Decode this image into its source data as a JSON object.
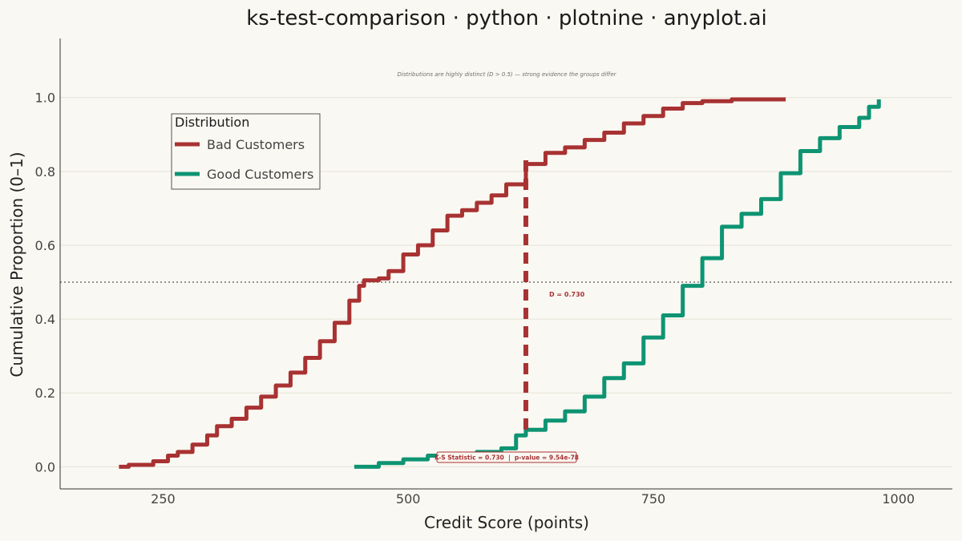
{
  "chart_data": {
    "type": "line",
    "title": "ks-test-comparison · python · plotnine · anyplot.ai",
    "xlabel": "Credit Score (points)",
    "ylabel": "Cumulative Proportion (0–1)",
    "xlim": [
      145,
      1055
    ],
    "ylim": [
      -0.06,
      1.16
    ],
    "x_ticks": [
      250,
      500,
      750,
      1000
    ],
    "y_ticks": [
      0.0,
      0.2,
      0.4,
      0.6,
      0.8,
      1.0
    ],
    "x_tick_labels": [
      "250",
      "500",
      "750",
      "1000"
    ],
    "y_tick_labels": [
      "0.0",
      "0.2",
      "0.4",
      "0.6",
      "0.8",
      "1.0"
    ],
    "grid": "horizontal",
    "legend": {
      "title": "Distribution",
      "position": "top-left"
    },
    "reference_line": {
      "y": 0.5,
      "style": "dotted"
    },
    "series": [
      {
        "name": "Bad Customers",
        "color": "#A83232",
        "x": [
          205,
          215,
          230,
          240,
          255,
          265,
          280,
          295,
          305,
          320,
          335,
          350,
          365,
          380,
          395,
          410,
          425,
          440,
          450,
          455,
          470,
          480,
          495,
          510,
          525,
          540,
          555,
          570,
          585,
          600,
          620,
          640,
          660,
          680,
          700,
          720,
          740,
          760,
          780,
          800,
          830,
          860,
          885
        ],
        "y": [
          0.0,
          0.005,
          0.005,
          0.015,
          0.03,
          0.04,
          0.06,
          0.085,
          0.11,
          0.13,
          0.16,
          0.19,
          0.22,
          0.255,
          0.295,
          0.34,
          0.39,
          0.45,
          0.49,
          0.505,
          0.51,
          0.53,
          0.575,
          0.6,
          0.64,
          0.68,
          0.695,
          0.715,
          0.735,
          0.765,
          0.82,
          0.85,
          0.865,
          0.885,
          0.905,
          0.93,
          0.95,
          0.97,
          0.985,
          0.99,
          0.995,
          0.995,
          0.995
        ]
      },
      {
        "name": "Good Customers",
        "color": "#0E9473",
        "x": [
          445,
          470,
          495,
          520,
          545,
          570,
          595,
          610,
          620,
          640,
          660,
          680,
          700,
          720,
          740,
          760,
          780,
          800,
          820,
          840,
          860,
          880,
          900,
          920,
          940,
          960,
          970,
          980
        ],
        "y": [
          0.0,
          0.01,
          0.02,
          0.03,
          0.035,
          0.04,
          0.05,
          0.085,
          0.1,
          0.125,
          0.15,
          0.19,
          0.24,
          0.28,
          0.35,
          0.41,
          0.49,
          0.565,
          0.65,
          0.685,
          0.725,
          0.795,
          0.855,
          0.89,
          0.92,
          0.945,
          0.975,
          0.995
        ]
      }
    ],
    "ks_line": {
      "x": 620,
      "y_low": 0.1,
      "y_high": 0.83,
      "color": "#A83232"
    },
    "annotations": {
      "top_note": "Distributions are highly distinct (D > 0.5) — strong evidence the groups differ",
      "d_label": "D = 0.730",
      "stats_box": "K-S Statistic = 0.730  |  p-value = 9.54e-78"
    }
  }
}
